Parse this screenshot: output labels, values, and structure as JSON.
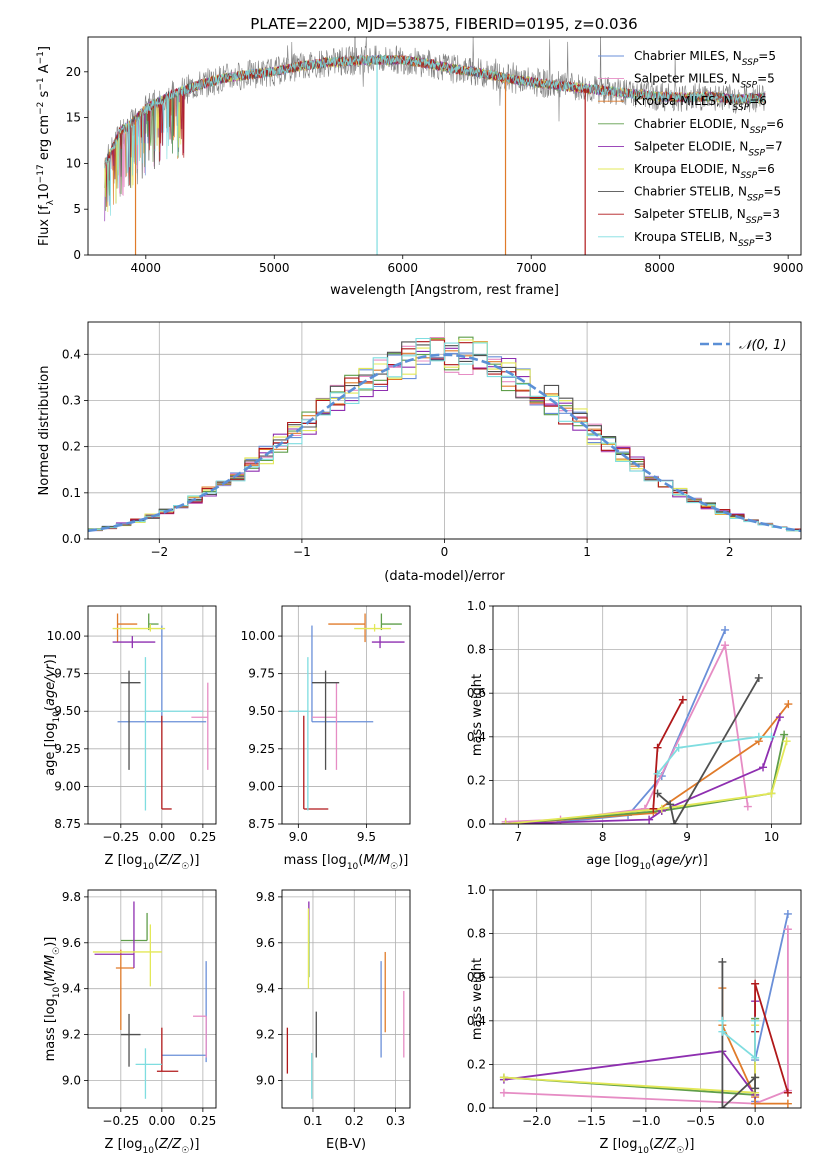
{
  "figure_title": "PLATE=2200, MJD=53875, FIBERID=0195, z=0.036",
  "colors": {
    "Chabrier MILES": "#6a8fd8",
    "Salpeter MILES": "#e68cc4",
    "Kroupa MILES": "#e07b2a",
    "Chabrier ELODIE": "#5f9e4a",
    "Salpeter ELODIE": "#8e2fb0",
    "Kroupa ELODIE": "#e3e858",
    "Chabrier STELIB": "#505050",
    "Salpeter STELIB": "#b0181a",
    "Kroupa STELIB": "#7fdde0",
    "data": "#7f7f7f",
    "normal_curve": "#5b8fd6",
    "grid": "#b0b0b0"
  },
  "chart_data": [
    {
      "id": "spectrum",
      "type": "line",
      "title": "PLATE=2200, MJD=53875, FIBERID=0195, z=0.036",
      "xlabel": "wavelength [Angstrom, rest frame]",
      "ylabel": "Flux [f_λ 10^-17 erg cm^-2 s^-1 A^-1]",
      "xlim": [
        3550,
        9100
      ],
      "ylim": [
        0,
        23.8
      ],
      "xticks": [
        4000,
        5000,
        6000,
        7000,
        8000,
        9000
      ],
      "yticks": [
        0,
        5,
        10,
        15,
        20
      ],
      "grid": false,
      "legend_position": "top-right",
      "legend": [
        {
          "label": "Chabrier MILES, N",
          "sub": "SSP",
          "tail": "=5",
          "series": "Chabrier MILES"
        },
        {
          "label": "Salpeter MILES, N",
          "sub": "SSP",
          "tail": "=5",
          "series": "Salpeter MILES"
        },
        {
          "label": "Kroupa MILES, N",
          "sub": "SSP",
          "tail": "=6",
          "series": "Kroupa MILES"
        },
        {
          "label": "Chabrier ELODIE, N",
          "sub": "SSP",
          "tail": "=6",
          "series": "Chabrier ELODIE"
        },
        {
          "label": "Salpeter ELODIE, N",
          "sub": "SSP",
          "tail": "=7",
          "series": "Salpeter ELODIE"
        },
        {
          "label": "Kroupa ELODIE, N",
          "sub": "SSP",
          "tail": "=6",
          "series": "Kroupa ELODIE"
        },
        {
          "label": "Chabrier STELIB, N",
          "sub": "SSP",
          "tail": "=5",
          "series": "Chabrier STELIB"
        },
        {
          "label": "Salpeter STELIB, N",
          "sub": "SSP",
          "tail": "=3",
          "series": "Salpeter STELIB"
        },
        {
          "label": "Kroupa STELIB, N",
          "sub": "SSP",
          "tail": "=3",
          "series": "Kroupa STELIB"
        }
      ],
      "continuum": {
        "x": [
          3680,
          3720,
          3800,
          3900,
          4000,
          4200,
          4400,
          4600,
          4800,
          5000,
          5200,
          5400,
          5600,
          5800,
          6000,
          6200,
          6400,
          6600,
          6800,
          7000,
          7200,
          7400,
          7600,
          7800,
          8000,
          8200,
          8400,
          8600,
          8800
        ],
        "y": [
          10.0,
          11.0,
          13.5,
          14.5,
          16.0,
          17.5,
          18.5,
          19.3,
          19.7,
          20.0,
          20.6,
          21.0,
          21.2,
          21.3,
          21.3,
          20.9,
          20.3,
          19.9,
          19.3,
          18.9,
          18.5,
          18.2,
          17.9,
          17.6,
          17.3,
          17.2,
          17.3,
          17.0,
          17.2
        ]
      },
      "glitches": [
        {
          "x": 3920,
          "y": 0,
          "series": "Kroupa MILES"
        },
        {
          "x": 5800,
          "y": 0,
          "series": "Kroupa STELIB"
        },
        {
          "x": 6800,
          "y": 0,
          "series": "Kroupa MILES"
        },
        {
          "x": 7420,
          "y": 0,
          "series": "Salpeter STELIB"
        }
      ]
    },
    {
      "id": "residual-histogram",
      "type": "histogram",
      "xlabel": "(data-model)/error",
      "ylabel": "Normed distribution",
      "xlim": [
        -2.5,
        2.5
      ],
      "ylim": [
        0,
        0.47
      ],
      "xticks": [
        -2,
        -1,
        0,
        1,
        2
      ],
      "yticks": [
        0.0,
        0.1,
        0.2,
        0.3,
        0.4
      ],
      "grid": true,
      "bin_width": 0.1,
      "legend_position": "top-right",
      "legend": [
        {
          "label": "𝒩(0, 1)",
          "style": "dashed"
        }
      ],
      "normal": {
        "mean": 0,
        "sigma": 1
      }
    },
    {
      "id": "age-vs-Z",
      "type": "errorbar",
      "xlabel": "Z [log10(Z/Z☉)]",
      "ylabel": "age  [log10(age/yr)]",
      "xlim": [
        -0.45,
        0.33
      ],
      "ylim": [
        8.75,
        10.2
      ],
      "xticks": [
        -0.25,
        0.0,
        0.25
      ],
      "yticks": [
        8.75,
        9.0,
        9.25,
        9.5,
        9.75,
        10.0
      ],
      "grid": true,
      "points": [
        {
          "series": "Chabrier MILES",
          "x": 0.0,
          "y": 9.43,
          "xerr": [
            0.27,
            0.27
          ],
          "yerr": [
            0.0,
            0.64
          ]
        },
        {
          "series": "Salpeter MILES",
          "x": 0.28,
          "y": 9.46,
          "xerr": [
            0.1,
            0.0
          ],
          "yerr": [
            0.35,
            0.23
          ]
        },
        {
          "series": "Kroupa MILES",
          "x": -0.27,
          "y": 10.08,
          "xerr": [
            0.0,
            0.12
          ],
          "yerr": [
            0.12,
            0.07
          ]
        },
        {
          "series": "Chabrier ELODIE",
          "x": -0.08,
          "y": 10.08,
          "xerr": [
            0.0,
            0.06
          ],
          "yerr": [
            0.04,
            0.07
          ]
        },
        {
          "series": "Salpeter ELODIE",
          "x": -0.18,
          "y": 9.96,
          "xerr": [
            0.12,
            0.14
          ],
          "yerr": [
            0.04,
            0.04
          ]
        },
        {
          "series": "Kroupa ELODIE",
          "x": -0.07,
          "y": 10.05,
          "xerr": [
            0.23,
            0.09
          ],
          "yerr": [
            0.02,
            0.03
          ]
        },
        {
          "series": "Chabrier STELIB",
          "x": -0.2,
          "y": 9.69,
          "xerr": [
            0.05,
            0.07
          ],
          "yerr": [
            0.58,
            0.08
          ]
        },
        {
          "series": "Salpeter STELIB",
          "x": 0.0,
          "y": 8.85,
          "xerr": [
            0.0,
            0.06
          ],
          "yerr": [
            0.0,
            0.62
          ]
        },
        {
          "series": "Kroupa STELIB",
          "x": -0.1,
          "y": 9.5,
          "xerr": [
            0.0,
            0.35
          ],
          "yerr": [
            0.66,
            0.36
          ]
        }
      ]
    },
    {
      "id": "age-vs-mass",
      "type": "errorbar",
      "xlabel": "mass [log10(M/M☉)]",
      "ylabel": "",
      "xlim": [
        8.88,
        9.82
      ],
      "ylim": [
        8.75,
        10.2
      ],
      "xticks": [
        9.0,
        9.5
      ],
      "yticks": [
        8.75,
        9.0,
        9.25,
        9.5,
        9.75,
        10.0
      ],
      "grid": true,
      "points": [
        {
          "series": "Chabrier MILES",
          "x": 9.1,
          "y": 9.43,
          "xerr": [
            0.0,
            0.45
          ],
          "yerr": [
            0.0,
            0.64
          ]
        },
        {
          "series": "Salpeter MILES",
          "x": 9.28,
          "y": 9.46,
          "xerr": [
            0.18,
            0.0
          ],
          "yerr": [
            0.35,
            0.23
          ]
        },
        {
          "series": "Kroupa MILES",
          "x": 9.49,
          "y": 10.08,
          "xerr": [
            0.27,
            0.0
          ],
          "yerr": [
            0.12,
            0.07
          ]
        },
        {
          "series": "Chabrier ELODIE",
          "x": 9.61,
          "y": 10.08,
          "xerr": [
            0.0,
            0.15
          ],
          "yerr": [
            0.04,
            0.07
          ]
        },
        {
          "series": "Salpeter ELODIE",
          "x": 9.6,
          "y": 9.96,
          "xerr": [
            0.06,
            0.18
          ],
          "yerr": [
            0.04,
            0.04
          ]
        },
        {
          "series": "Kroupa ELODIE",
          "x": 9.56,
          "y": 10.05,
          "xerr": [
            0.15,
            0.12
          ],
          "yerr": [
            0.02,
            0.03
          ]
        },
        {
          "series": "Chabrier STELIB",
          "x": 9.2,
          "y": 9.69,
          "xerr": [
            0.1,
            0.1
          ],
          "yerr": [
            0.58,
            0.08
          ]
        },
        {
          "series": "Salpeter STELIB",
          "x": 9.04,
          "y": 8.85,
          "xerr": [
            0.0,
            0.18
          ],
          "yerr": [
            0.0,
            0.62
          ]
        },
        {
          "series": "Kroupa STELIB",
          "x": 9.07,
          "y": 9.5,
          "xerr": [
            0.14,
            0.0
          ],
          "yerr": [
            0.66,
            0.36
          ]
        }
      ]
    },
    {
      "id": "mass-weight-vs-age",
      "type": "line",
      "xlabel": "age  [log10(age/yr)]",
      "ylabel": "mass weight",
      "xlim": [
        6.7,
        10.35
      ],
      "ylim": [
        0,
        1.0
      ],
      "xticks": [
        7,
        8,
        9,
        10
      ],
      "yticks": [
        0.0,
        0.2,
        0.4,
        0.6,
        0.8,
        1.0
      ],
      "grid": true,
      "series": [
        {
          "name": "Chabrier MILES",
          "x": [
            7.5,
            8.3,
            8.7,
            9.45
          ],
          "y": [
            0.01,
            0.04,
            0.22,
            0.89
          ]
        },
        {
          "name": "Salpeter MILES",
          "x": [
            6.85,
            7.5,
            8.5,
            9.45,
            9.72
          ],
          "y": [
            0.01,
            0.02,
            0.07,
            0.82,
            0.08
          ]
        },
        {
          "name": "Kroupa MILES",
          "x": [
            6.85,
            8.6,
            9.85,
            10.2
          ],
          "y": [
            0.0,
            0.05,
            0.38,
            0.55
          ]
        },
        {
          "name": "Chabrier ELODIE",
          "x": [
            6.85,
            8.7,
            10.0,
            10.15
          ],
          "y": [
            0.0,
            0.06,
            0.14,
            0.41
          ]
        },
        {
          "name": "Salpeter ELODIE",
          "x": [
            6.85,
            8.55,
            8.7,
            9.9,
            10.1
          ],
          "y": [
            0.0,
            0.02,
            0.06,
            0.26,
            0.49
          ]
        },
        {
          "name": "Kroupa ELODIE",
          "x": [
            6.85,
            8.7,
            10.0,
            10.18
          ],
          "y": [
            0.0,
            0.07,
            0.14,
            0.38
          ]
        },
        {
          "name": "Chabrier STELIB",
          "x": [
            8.65,
            8.8,
            8.85,
            9.85
          ],
          "y": [
            0.14,
            0.09,
            0.0,
            0.67
          ]
        },
        {
          "name": "Salpeter STELIB",
          "x": [
            8.6,
            8.65,
            8.95
          ],
          "y": [
            0.07,
            0.35,
            0.57
          ]
        },
        {
          "name": "Kroupa STELIB",
          "x": [
            8.65,
            8.9,
            9.85,
            10.0
          ],
          "y": [
            0.23,
            0.35,
            0.4,
            0.4
          ]
        }
      ]
    },
    {
      "id": "mass-vs-Z",
      "type": "errorbar",
      "xlabel": "Z [log10(Z/Z☉)]",
      "ylabel": "mass [log10(M/M☉)]",
      "xlim": [
        -0.45,
        0.33
      ],
      "ylim": [
        8.88,
        9.83
      ],
      "xticks": [
        -0.25,
        0.0,
        0.25
      ],
      "yticks": [
        9.0,
        9.2,
        9.4,
        9.6,
        9.8
      ],
      "grid": true,
      "points": [
        {
          "series": "Chabrier MILES",
          "x": 0.27,
          "y": 9.11,
          "xerr": [
            0.27,
            0.0
          ],
          "yerr": [
            0.03,
            0.41
          ]
        },
        {
          "series": "Salpeter MILES",
          "x": 0.27,
          "y": 9.28,
          "xerr": [
            0.08,
            0.0
          ],
          "yerr": [
            0.18,
            0.0
          ]
        },
        {
          "series": "Kroupa MILES",
          "x": -0.25,
          "y": 9.49,
          "xerr": [
            0.03,
            0.08
          ],
          "yerr": [
            0.27,
            0.08
          ]
        },
        {
          "series": "Chabrier ELODIE",
          "x": -0.09,
          "y": 9.61,
          "xerr": [
            0.16,
            0.0
          ],
          "yerr": [
            0.0,
            0.12
          ]
        },
        {
          "series": "Salpeter ELODIE",
          "x": -0.17,
          "y": 9.55,
          "xerr": [
            0.24,
            0.0
          ],
          "yerr": [
            0.06,
            0.23
          ]
        },
        {
          "series": "Kroupa ELODIE",
          "x": -0.07,
          "y": 9.56,
          "xerr": [
            0.35,
            0.07
          ],
          "yerr": [
            0.15,
            0.12
          ]
        },
        {
          "series": "Chabrier STELIB",
          "x": -0.2,
          "y": 9.2,
          "xerr": [
            0.05,
            0.07
          ],
          "yerr": [
            0.14,
            0.09
          ]
        },
        {
          "series": "Salpeter STELIB",
          "x": 0.0,
          "y": 9.04,
          "xerr": [
            0.03,
            0.1
          ],
          "yerr": [
            0.0,
            0.19
          ]
        },
        {
          "series": "Kroupa STELIB",
          "x": -0.1,
          "y": 9.07,
          "xerr": [
            0.06,
            0.1
          ],
          "yerr": [
            0.15,
            0.07
          ]
        }
      ]
    },
    {
      "id": "mass-vs-ebv",
      "type": "errorbar",
      "xlabel": "E(B-V)",
      "ylabel": "",
      "xlim": [
        0.025,
        0.335
      ],
      "ylim": [
        8.88,
        9.83
      ],
      "xticks": [
        0.1,
        0.2,
        0.3
      ],
      "yticks": [
        9.0,
        9.2,
        9.4,
        9.6,
        9.8
      ],
      "grid": true,
      "points": [
        {
          "series": "Chabrier MILES",
          "x": 0.265,
          "y": 9.28,
          "yerr": [
            0.18,
            0.24
          ]
        },
        {
          "series": "Salpeter MILES",
          "x": 0.32,
          "y": 9.28,
          "yerr": [
            0.18,
            0.11
          ]
        },
        {
          "series": "Kroupa MILES",
          "x": 0.275,
          "y": 9.4,
          "yerr": [
            0.19,
            0.16
          ]
        },
        {
          "series": "Chabrier ELODIE",
          "x": 0.09,
          "y": 9.62,
          "yerr": [
            0.17,
            0.11
          ]
        },
        {
          "series": "Salpeter ELODIE",
          "x": 0.09,
          "y": 9.72,
          "yerr": [
            0.02,
            0.06
          ]
        },
        {
          "series": "Kroupa ELODIE",
          "x": 0.089,
          "y": 9.55,
          "yerr": [
            0.15,
            0.2
          ]
        },
        {
          "series": "Chabrier STELIB",
          "x": 0.108,
          "y": 9.2,
          "yerr": [
            0.1,
            0.1
          ]
        },
        {
          "series": "Salpeter STELIB",
          "x": 0.038,
          "y": 9.13,
          "yerr": [
            0.1,
            0.1
          ]
        },
        {
          "series": "Kroupa STELIB",
          "x": 0.097,
          "y": 9.02,
          "yerr": [
            0.1,
            0.1
          ]
        }
      ]
    },
    {
      "id": "mass-weight-vs-Z",
      "type": "line",
      "xlabel": "Z [log10(Z/Z☉)]",
      "ylabel": "mass weight",
      "xlim": [
        -2.4,
        0.42
      ],
      "ylim": [
        0,
        1.0
      ],
      "xticks": [
        -2.0,
        -1.5,
        -1.0,
        -0.5,
        0.0
      ],
      "yticks": [
        0.0,
        0.2,
        0.4,
        0.6,
        0.8,
        1.0
      ],
      "grid": true,
      "series": [
        {
          "name": "Chabrier MILES",
          "x": [
            0.0,
            0.0,
            0.3
          ],
          "y": [
            0.03,
            0.22,
            0.89
          ]
        },
        {
          "name": "Salpeter MILES",
          "x": [
            -2.3,
            0.0,
            0.3,
            0.3
          ],
          "y": [
            0.07,
            0.02,
            0.08,
            0.82
          ]
        },
        {
          "name": "Kroupa MILES",
          "x": [
            -0.3,
            -0.3,
            0.0,
            0.0,
            0.3
          ],
          "y": [
            0.55,
            0.38,
            0.05,
            0.02,
            0.02
          ]
        },
        {
          "name": "Chabrier ELODIE",
          "x": [
            -2.3,
            0.0,
            0.0,
            0.0
          ],
          "y": [
            0.14,
            0.06,
            0.14,
            0.41
          ]
        },
        {
          "name": "Salpeter ELODIE",
          "x": [
            -2.3,
            -0.3,
            0.0,
            0.0
          ],
          "y": [
            0.13,
            0.26,
            0.06,
            0.49
          ]
        },
        {
          "name": "Kroupa ELODIE",
          "x": [
            -2.3,
            0.0,
            0.0,
            0.0
          ],
          "y": [
            0.14,
            0.07,
            0.14,
            0.38
          ]
        },
        {
          "name": "Chabrier STELIB",
          "x": [
            -0.3,
            -0.3,
            0.0,
            0.0
          ],
          "y": [
            0.67,
            0.0,
            0.14,
            0.09
          ]
        },
        {
          "name": "Salpeter STELIB",
          "x": [
            0.0,
            0.0,
            0.3
          ],
          "y": [
            0.35,
            0.57,
            0.07
          ]
        },
        {
          "name": "Kroupa STELIB",
          "x": [
            -0.3,
            -0.3,
            0.0,
            0.0
          ],
          "y": [
            0.4,
            0.35,
            0.23,
            0.4
          ]
        }
      ]
    }
  ]
}
